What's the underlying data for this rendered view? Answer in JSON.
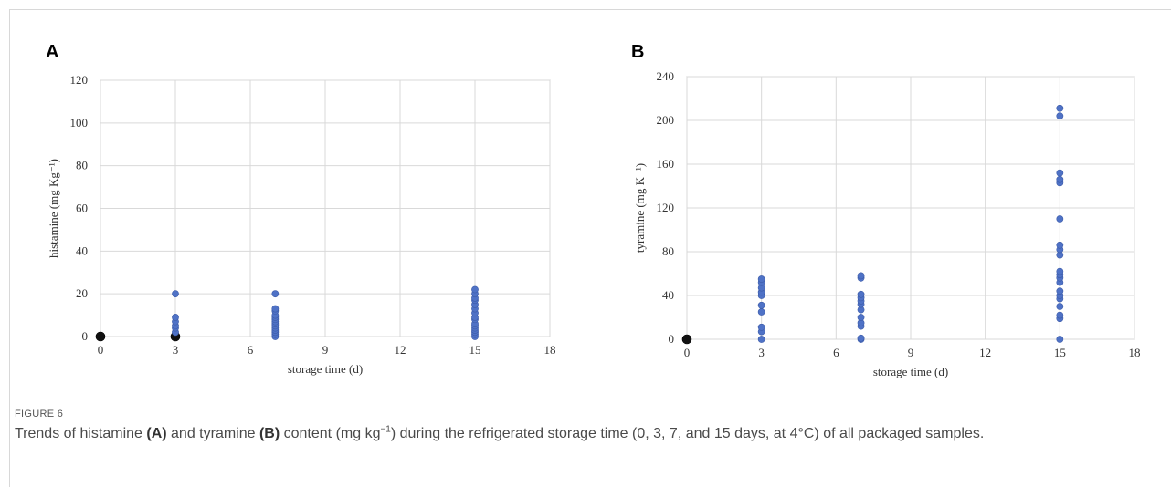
{
  "chart_data": [
    {
      "type": "scatter",
      "panel": "A",
      "xlabel": "storage time  (d)",
      "ylabel": "histamine  (mg Kg⁻¹)",
      "xlim": [
        0,
        18
      ],
      "ylim": [
        0,
        120
      ],
      "xticks": [
        0,
        3,
        6,
        9,
        12,
        15,
        18
      ],
      "yticks": [
        0,
        20,
        40,
        60,
        80,
        100,
        120
      ],
      "grid": true,
      "points": [
        {
          "x": 0,
          "y": 0,
          "kind": "origin"
        },
        {
          "x": 3,
          "y": 0,
          "kind": "origin"
        },
        {
          "x": 3,
          "y": 2
        },
        {
          "x": 3,
          "y": 4
        },
        {
          "x": 3,
          "y": 5
        },
        {
          "x": 3,
          "y": 7
        },
        {
          "x": 3,
          "y": 9
        },
        {
          "x": 3,
          "y": 20
        },
        {
          "x": 7,
          "y": 0
        },
        {
          "x": 7,
          "y": 1
        },
        {
          "x": 7,
          "y": 2
        },
        {
          "x": 7,
          "y": 3
        },
        {
          "x": 7,
          "y": 4
        },
        {
          "x": 7,
          "y": 5
        },
        {
          "x": 7,
          "y": 6
        },
        {
          "x": 7,
          "y": 7
        },
        {
          "x": 7,
          "y": 8
        },
        {
          "x": 7,
          "y": 9
        },
        {
          "x": 7,
          "y": 10
        },
        {
          "x": 7,
          "y": 12
        },
        {
          "x": 7,
          "y": 13
        },
        {
          "x": 7,
          "y": 20
        },
        {
          "x": 15,
          "y": 0
        },
        {
          "x": 15,
          "y": 1
        },
        {
          "x": 15,
          "y": 2
        },
        {
          "x": 15,
          "y": 3
        },
        {
          "x": 15,
          "y": 4
        },
        {
          "x": 15,
          "y": 5
        },
        {
          "x": 15,
          "y": 6
        },
        {
          "x": 15,
          "y": 8
        },
        {
          "x": 15,
          "y": 9
        },
        {
          "x": 15,
          "y": 11
        },
        {
          "x": 15,
          "y": 13
        },
        {
          "x": 15,
          "y": 15
        },
        {
          "x": 15,
          "y": 17
        },
        {
          "x": 15,
          "y": 18
        },
        {
          "x": 15,
          "y": 20
        },
        {
          "x": 15,
          "y": 22
        }
      ]
    },
    {
      "type": "scatter",
      "panel": "B",
      "xlabel": "storage time  (d)",
      "ylabel": "tyramine  (mg K⁻¹)",
      "xlim": [
        0,
        18
      ],
      "ylim": [
        0,
        240
      ],
      "xticks": [
        0,
        3,
        6,
        9,
        12,
        15,
        18
      ],
      "yticks": [
        0,
        40,
        80,
        120,
        160,
        200,
        240
      ],
      "grid": true,
      "points": [
        {
          "x": 0,
          "y": 0,
          "kind": "origin"
        },
        {
          "x": 3,
          "y": 0
        },
        {
          "x": 3,
          "y": 7
        },
        {
          "x": 3,
          "y": 11
        },
        {
          "x": 3,
          "y": 25
        },
        {
          "x": 3,
          "y": 31
        },
        {
          "x": 3,
          "y": 40
        },
        {
          "x": 3,
          "y": 43
        },
        {
          "x": 3,
          "y": 47
        },
        {
          "x": 3,
          "y": 52
        },
        {
          "x": 3,
          "y": 55
        },
        {
          "x": 7,
          "y": 0
        },
        {
          "x": 7,
          "y": 1
        },
        {
          "x": 7,
          "y": 12
        },
        {
          "x": 7,
          "y": 15
        },
        {
          "x": 7,
          "y": 20
        },
        {
          "x": 7,
          "y": 27
        },
        {
          "x": 7,
          "y": 32
        },
        {
          "x": 7,
          "y": 35
        },
        {
          "x": 7,
          "y": 38
        },
        {
          "x": 7,
          "y": 41
        },
        {
          "x": 7,
          "y": 56
        },
        {
          "x": 7,
          "y": 58
        },
        {
          "x": 15,
          "y": 0
        },
        {
          "x": 15,
          "y": 19
        },
        {
          "x": 15,
          "y": 22
        },
        {
          "x": 15,
          "y": 30
        },
        {
          "x": 15,
          "y": 37
        },
        {
          "x": 15,
          "y": 40
        },
        {
          "x": 15,
          "y": 44
        },
        {
          "x": 15,
          "y": 52
        },
        {
          "x": 15,
          "y": 56
        },
        {
          "x": 15,
          "y": 59
        },
        {
          "x": 15,
          "y": 62
        },
        {
          "x": 15,
          "y": 77
        },
        {
          "x": 15,
          "y": 82
        },
        {
          "x": 15,
          "y": 86
        },
        {
          "x": 15,
          "y": 110
        },
        {
          "x": 15,
          "y": 143
        },
        {
          "x": 15,
          "y": 146
        },
        {
          "x": 15,
          "y": 152
        },
        {
          "x": 15,
          "y": 204
        },
        {
          "x": 15,
          "y": 211
        }
      ]
    }
  ],
  "caption": {
    "label": "FIGURE 6",
    "t1": "Trends of histamine ",
    "b1": "(A)",
    "t2": " and tyramine ",
    "b2": "(B)",
    "t3": " content (mg kg",
    "sup": "−1",
    "t4": ") during the refrigerated storage time (0, 3, 7, and 15 days, at 4°C) of all packaged samples."
  }
}
